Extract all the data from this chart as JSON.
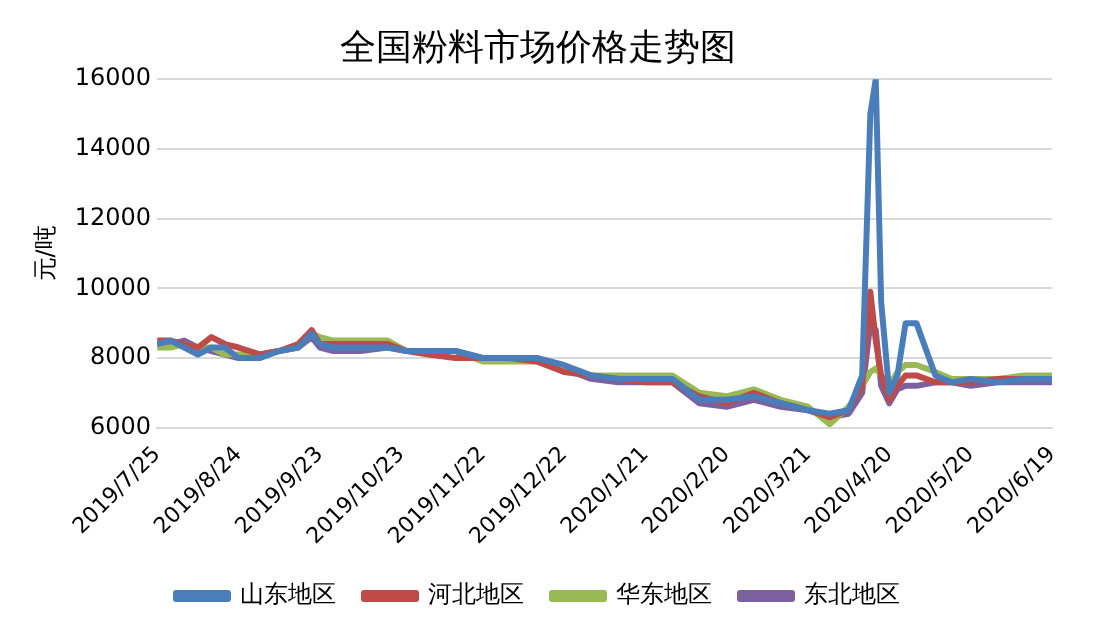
{
  "chart_data": {
    "type": "line",
    "title": "全国粉料市场价格走势图",
    "ylabel": "元/吨",
    "x": [
      "2019-07-25",
      "2019-07-30",
      "2019-08-04",
      "2019-08-09",
      "2019-08-14",
      "2019-08-19",
      "2019-08-24",
      "2019-09-01",
      "2019-09-08",
      "2019-09-15",
      "2019-09-20",
      "2019-09-23",
      "2019-09-28",
      "2019-10-08",
      "2019-10-18",
      "2019-10-25",
      "2019-11-02",
      "2019-11-12",
      "2019-11-22",
      "2019-12-02",
      "2019-12-12",
      "2019-12-22",
      "2020-01-01",
      "2020-01-11",
      "2020-01-21",
      "2020-01-31",
      "2020-02-10",
      "2020-02-20",
      "2020-03-01",
      "2020-03-11",
      "2020-03-21",
      "2020-03-29",
      "2020-04-05",
      "2020-04-10",
      "2020-04-13",
      "2020-04-15",
      "2020-04-17",
      "2020-04-20",
      "2020-04-23",
      "2020-04-26",
      "2020-04-30",
      "2020-05-07",
      "2020-05-13",
      "2020-05-20",
      "2020-05-30",
      "2020-06-09",
      "2020-06-19"
    ],
    "series": [
      {
        "name": "山东地区",
        "color": "#4a7ebb",
        "values": [
          8400,
          8500,
          8300,
          8100,
          8300,
          8300,
          8000,
          8000,
          8200,
          8300,
          8700,
          8400,
          8300,
          8300,
          8300,
          8200,
          8200,
          8200,
          8000,
          8000,
          8000,
          7800,
          7500,
          7400,
          7400,
          7400,
          6800,
          6800,
          6900,
          6700,
          6500,
          6400,
          6500,
          7500,
          15000,
          16000,
          9600,
          7000,
          7500,
          9000,
          9000,
          7500,
          7300,
          7400,
          7300,
          7400,
          7400
        ]
      },
      {
        "name": "河北地区",
        "color": "#be4b48",
        "values": [
          8500,
          8500,
          8400,
          8300,
          8600,
          8400,
          8300,
          8100,
          8200,
          8400,
          8800,
          8400,
          8400,
          8400,
          8400,
          8200,
          8100,
          8000,
          8000,
          8000,
          7900,
          7600,
          7500,
          7400,
          7300,
          7300,
          6900,
          6700,
          7000,
          6700,
          6500,
          6300,
          6500,
          7200,
          9900,
          8500,
          7500,
          6800,
          7200,
          7500,
          7500,
          7300,
          7300,
          7300,
          7400,
          7400,
          7400
        ]
      },
      {
        "name": "华东地区",
        "color": "#98b954",
        "values": [
          8300,
          8300,
          8400,
          8300,
          8300,
          8100,
          8100,
          8100,
          8200,
          8300,
          8700,
          8600,
          8500,
          8500,
          8500,
          8200,
          8200,
          8200,
          7900,
          7900,
          7900,
          7700,
          7500,
          7500,
          7500,
          7500,
          7000,
          6900,
          7100,
          6800,
          6600,
          6100,
          6600,
          7200,
          7600,
          7700,
          7500,
          7200,
          7600,
          7800,
          7800,
          7600,
          7400,
          7400,
          7400,
          7500,
          7500
        ]
      },
      {
        "name": "东北地区",
        "color": "#7d60a0",
        "values": [
          8400,
          8400,
          8500,
          8300,
          8200,
          8100,
          8000,
          8100,
          8200,
          8300,
          8600,
          8300,
          8200,
          8200,
          8300,
          8200,
          8200,
          8200,
          8000,
          8000,
          8000,
          7700,
          7400,
          7300,
          7300,
          7300,
          6700,
          6600,
          6800,
          6600,
          6500,
          6300,
          6400,
          7000,
          9000,
          8800,
          7200,
          6700,
          7100,
          7200,
          7200,
          7300,
          7300,
          7200,
          7300,
          7300,
          7300
        ]
      }
    ],
    "ylim": [
      6000,
      16000
    ],
    "yticks": [
      6000,
      8000,
      10000,
      12000,
      14000,
      16000
    ],
    "xlim": [
      "2019-07-25",
      "2020-06-19"
    ],
    "xticks": [
      {
        "value": "2019-07-25",
        "label": "2019/7/25"
      },
      {
        "value": "2019-08-24",
        "label": "2019/8/24"
      },
      {
        "value": "2019-09-23",
        "label": "2019/9/23"
      },
      {
        "value": "2019-10-23",
        "label": "2019/10/23"
      },
      {
        "value": "2019-11-22",
        "label": "2019/11/22"
      },
      {
        "value": "2019-12-22",
        "label": "2019/12/22"
      },
      {
        "value": "2020-01-21",
        "label": "2020/1/21"
      },
      {
        "value": "2020-02-20",
        "label": "2020/2/20"
      },
      {
        "value": "2020-03-21",
        "label": "2020/3/21"
      },
      {
        "value": "2020-04-20",
        "label": "2020/4/20"
      },
      {
        "value": "2020-05-20",
        "label": "2020/5/20"
      },
      {
        "value": "2020-06-19",
        "label": "2020/6/19"
      }
    ],
    "grid": "y",
    "legend": "bottom",
    "marker": "none",
    "line_style": "solid"
  }
}
